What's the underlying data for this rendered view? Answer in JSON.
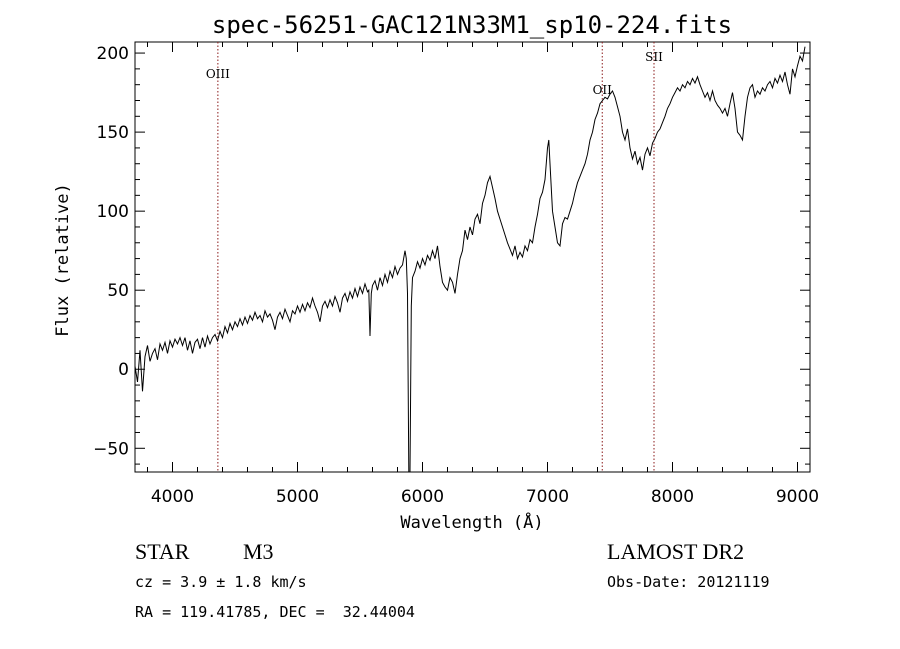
{
  "chart_data": {
    "type": "line",
    "title": "spec-56251-GAC121N33M1_sp10-224.fits",
    "xlabel": "Wavelength (Å)",
    "ylabel": "Flux (relative)",
    "xlim": [
      3700,
      9100
    ],
    "ylim": [
      -65,
      207
    ],
    "x_ticks": [
      4000,
      5000,
      6000,
      7000,
      8000,
      9000
    ],
    "y_ticks": [
      -50,
      0,
      50,
      100,
      150,
      200
    ],
    "grid": false,
    "line_color": "#000000",
    "marker_color": "#8b1a1a",
    "spectral_lines": [
      {
        "name": "OIII",
        "x": 4363
      },
      {
        "name": "OII",
        "x": 7438
      },
      {
        "name": "SII",
        "x": 7852
      }
    ],
    "series": [
      {
        "points": [
          [
            3700,
            2
          ],
          [
            3720,
            -8
          ],
          [
            3740,
            12
          ],
          [
            3760,
            -14
          ],
          [
            3780,
            8
          ],
          [
            3800,
            15
          ],
          [
            3820,
            5
          ],
          [
            3840,
            10
          ],
          [
            3860,
            13
          ],
          [
            3880,
            6
          ],
          [
            3900,
            16
          ],
          [
            3920,
            12
          ],
          [
            3940,
            17
          ],
          [
            3960,
            10
          ],
          [
            3980,
            18
          ],
          [
            4000,
            14
          ],
          [
            4020,
            19
          ],
          [
            4040,
            16
          ],
          [
            4060,
            20
          ],
          [
            4080,
            15
          ],
          [
            4100,
            20
          ],
          [
            4120,
            12
          ],
          [
            4140,
            18
          ],
          [
            4160,
            10
          ],
          [
            4180,
            17
          ],
          [
            4200,
            19
          ],
          [
            4220,
            13
          ],
          [
            4240,
            20
          ],
          [
            4260,
            14
          ],
          [
            4280,
            21
          ],
          [
            4300,
            16
          ],
          [
            4320,
            20
          ],
          [
            4340,
            22
          ],
          [
            4360,
            18
          ],
          [
            4380,
            24
          ],
          [
            4400,
            20
          ],
          [
            4420,
            27
          ],
          [
            4440,
            23
          ],
          [
            4460,
            29
          ],
          [
            4480,
            25
          ],
          [
            4500,
            30
          ],
          [
            4520,
            27
          ],
          [
            4540,
            32
          ],
          [
            4560,
            28
          ],
          [
            4580,
            33
          ],
          [
            4600,
            29
          ],
          [
            4620,
            34
          ],
          [
            4640,
            31
          ],
          [
            4660,
            36
          ],
          [
            4680,
            32
          ],
          [
            4700,
            34
          ],
          [
            4720,
            30
          ],
          [
            4740,
            37
          ],
          [
            4760,
            33
          ],
          [
            4780,
            35
          ],
          [
            4800,
            31
          ],
          [
            4820,
            25
          ],
          [
            4840,
            33
          ],
          [
            4860,
            36
          ],
          [
            4880,
            32
          ],
          [
            4900,
            38
          ],
          [
            4920,
            34
          ],
          [
            4940,
            30
          ],
          [
            4960,
            37
          ],
          [
            4980,
            35
          ],
          [
            5000,
            40
          ],
          [
            5020,
            36
          ],
          [
            5040,
            41
          ],
          [
            5060,
            37
          ],
          [
            5080,
            42
          ],
          [
            5100,
            39
          ],
          [
            5120,
            45
          ],
          [
            5140,
            40
          ],
          [
            5160,
            36
          ],
          [
            5180,
            30
          ],
          [
            5200,
            40
          ],
          [
            5220,
            43
          ],
          [
            5240,
            39
          ],
          [
            5260,
            44
          ],
          [
            5280,
            40
          ],
          [
            5300,
            46
          ],
          [
            5320,
            42
          ],
          [
            5340,
            36
          ],
          [
            5360,
            45
          ],
          [
            5380,
            48
          ],
          [
            5400,
            43
          ],
          [
            5420,
            49
          ],
          [
            5440,
            45
          ],
          [
            5460,
            51
          ],
          [
            5480,
            46
          ],
          [
            5500,
            52
          ],
          [
            5520,
            48
          ],
          [
            5540,
            54
          ],
          [
            5560,
            49
          ],
          [
            5570,
            50
          ],
          [
            5580,
            21
          ],
          [
            5590,
            48
          ],
          [
            5600,
            53
          ],
          [
            5620,
            56
          ],
          [
            5640,
            50
          ],
          [
            5660,
            58
          ],
          [
            5680,
            53
          ],
          [
            5700,
            60
          ],
          [
            5720,
            55
          ],
          [
            5740,
            62
          ],
          [
            5760,
            58
          ],
          [
            5780,
            65
          ],
          [
            5800,
            60
          ],
          [
            5820,
            64
          ],
          [
            5840,
            66
          ],
          [
            5860,
            75
          ],
          [
            5870,
            70
          ],
          [
            5880,
            48
          ],
          [
            5890,
            -65
          ],
          [
            5900,
            -65
          ],
          [
            5910,
            40
          ],
          [
            5920,
            58
          ],
          [
            5940,
            62
          ],
          [
            5960,
            68
          ],
          [
            5980,
            64
          ],
          [
            6000,
            70
          ],
          [
            6020,
            66
          ],
          [
            6040,
            72
          ],
          [
            6060,
            69
          ],
          [
            6080,
            75
          ],
          [
            6100,
            70
          ],
          [
            6120,
            78
          ],
          [
            6140,
            65
          ],
          [
            6160,
            55
          ],
          [
            6180,
            52
          ],
          [
            6200,
            50
          ],
          [
            6220,
            58
          ],
          [
            6240,
            55
          ],
          [
            6260,
            48
          ],
          [
            6280,
            60
          ],
          [
            6300,
            70
          ],
          [
            6320,
            75
          ],
          [
            6340,
            88
          ],
          [
            6360,
            82
          ],
          [
            6380,
            90
          ],
          [
            6400,
            85
          ],
          [
            6420,
            95
          ],
          [
            6440,
            98
          ],
          [
            6460,
            92
          ],
          [
            6480,
            105
          ],
          [
            6500,
            110
          ],
          [
            6520,
            118
          ],
          [
            6540,
            122
          ],
          [
            6560,
            115
          ],
          [
            6580,
            108
          ],
          [
            6600,
            100
          ],
          [
            6620,
            95
          ],
          [
            6640,
            90
          ],
          [
            6660,
            85
          ],
          [
            6680,
            80
          ],
          [
            6700,
            76
          ],
          [
            6720,
            72
          ],
          [
            6740,
            78
          ],
          [
            6760,
            70
          ],
          [
            6780,
            74
          ],
          [
            6800,
            71
          ],
          [
            6820,
            78
          ],
          [
            6840,
            75
          ],
          [
            6860,
            82
          ],
          [
            6880,
            80
          ],
          [
            6900,
            90
          ],
          [
            6920,
            98
          ],
          [
            6940,
            108
          ],
          [
            6960,
            112
          ],
          [
            6980,
            120
          ],
          [
            7000,
            140
          ],
          [
            7010,
            145
          ],
          [
            7020,
            130
          ],
          [
            7040,
            100
          ],
          [
            7060,
            90
          ],
          [
            7080,
            80
          ],
          [
            7100,
            78
          ],
          [
            7120,
            92
          ],
          [
            7140,
            96
          ],
          [
            7160,
            95
          ],
          [
            7180,
            100
          ],
          [
            7200,
            105
          ],
          [
            7220,
            112
          ],
          [
            7240,
            118
          ],
          [
            7260,
            122
          ],
          [
            7280,
            126
          ],
          [
            7300,
            130
          ],
          [
            7320,
            136
          ],
          [
            7340,
            145
          ],
          [
            7360,
            150
          ],
          [
            7380,
            158
          ],
          [
            7400,
            162
          ],
          [
            7420,
            168
          ],
          [
            7440,
            170
          ],
          [
            7460,
            172
          ],
          [
            7480,
            171
          ],
          [
            7500,
            174
          ],
          [
            7520,
            176
          ],
          [
            7540,
            172
          ],
          [
            7560,
            166
          ],
          [
            7580,
            160
          ],
          [
            7600,
            150
          ],
          [
            7620,
            145
          ],
          [
            7640,
            152
          ],
          [
            7660,
            140
          ],
          [
            7680,
            133
          ],
          [
            7700,
            138
          ],
          [
            7720,
            130
          ],
          [
            7740,
            134
          ],
          [
            7760,
            126
          ],
          [
            7780,
            136
          ],
          [
            7800,
            140
          ],
          [
            7820,
            135
          ],
          [
            7840,
            143
          ],
          [
            7860,
            146
          ],
          [
            7880,
            150
          ],
          [
            7900,
            152
          ],
          [
            7920,
            156
          ],
          [
            7940,
            160
          ],
          [
            7960,
            165
          ],
          [
            7980,
            168
          ],
          [
            8000,
            172
          ],
          [
            8020,
            175
          ],
          [
            8040,
            178
          ],
          [
            8060,
            176
          ],
          [
            8080,
            180
          ],
          [
            8100,
            178
          ],
          [
            8120,
            182
          ],
          [
            8140,
            180
          ],
          [
            8160,
            184
          ],
          [
            8180,
            181
          ],
          [
            8200,
            185
          ],
          [
            8220,
            180
          ],
          [
            8240,
            176
          ],
          [
            8260,
            172
          ],
          [
            8280,
            175
          ],
          [
            8300,
            170
          ],
          [
            8320,
            176
          ],
          [
            8340,
            170
          ],
          [
            8360,
            167
          ],
          [
            8380,
            165
          ],
          [
            8400,
            162
          ],
          [
            8420,
            165
          ],
          [
            8440,
            160
          ],
          [
            8460,
            168
          ],
          [
            8480,
            175
          ],
          [
            8500,
            165
          ],
          [
            8520,
            150
          ],
          [
            8540,
            148
          ],
          [
            8560,
            145
          ],
          [
            8580,
            160
          ],
          [
            8600,
            172
          ],
          [
            8620,
            178
          ],
          [
            8640,
            180
          ],
          [
            8660,
            172
          ],
          [
            8680,
            176
          ],
          [
            8700,
            174
          ],
          [
            8720,
            178
          ],
          [
            8740,
            176
          ],
          [
            8760,
            180
          ],
          [
            8780,
            182
          ],
          [
            8800,
            178
          ],
          [
            8820,
            184
          ],
          [
            8840,
            181
          ],
          [
            8860,
            186
          ],
          [
            8880,
            182
          ],
          [
            8900,
            188
          ],
          [
            8920,
            180
          ],
          [
            8940,
            174
          ],
          [
            8960,
            190
          ],
          [
            8980,
            185
          ],
          [
            9000,
            192
          ],
          [
            9020,
            198
          ],
          [
            9040,
            195
          ],
          [
            9060,
            204
          ]
        ]
      }
    ]
  },
  "info": {
    "object_type": "STAR",
    "subclass": "M3",
    "survey": "LAMOST DR2",
    "cz": "cz = 3.9 ± 1.8 km/s",
    "obs_date": "Obs-Date: 20121119",
    "coords": "RA = 119.41785, DEC =  32.44004"
  }
}
